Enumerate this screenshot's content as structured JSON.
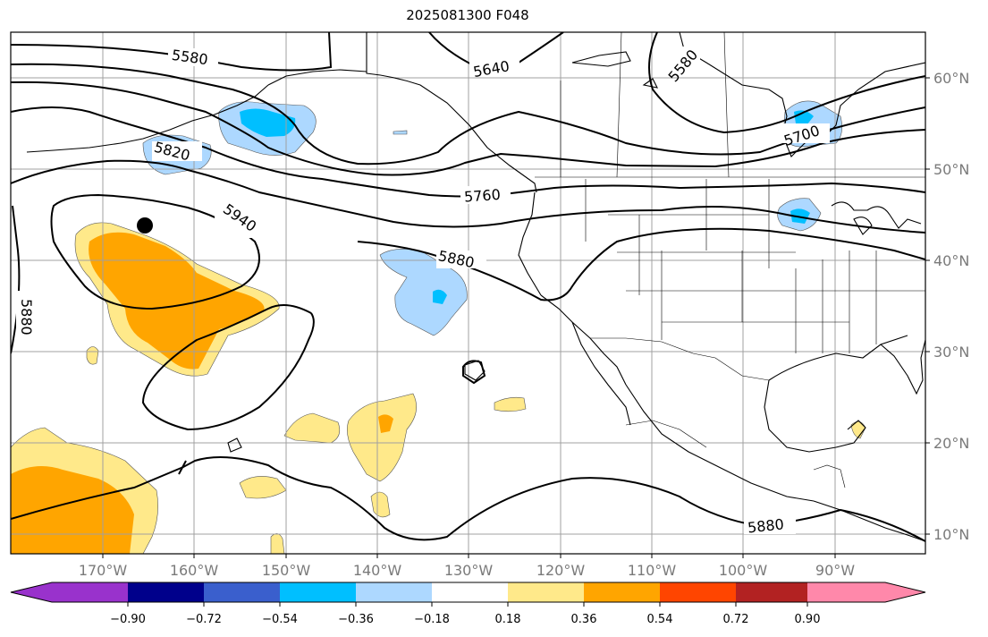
{
  "title": "2025081300 F048",
  "lon_labels": [
    "170°W",
    "160°W",
    "150°W",
    "140°W",
    "130°W",
    "120°W",
    "110°W",
    "100°W",
    "90°W"
  ],
  "lat_labels": [
    "60°N",
    "50°N",
    "40°N",
    "30°N",
    "20°N",
    "10°N"
  ],
  "contour_labels": [
    "5580",
    "5640",
    "5580",
    "5700",
    "5820",
    "5760",
    "5940",
    "5880",
    "5880",
    "5880"
  ],
  "colorbar": {
    "ticks": [
      "−0.90",
      "−0.72",
      "−0.54",
      "−0.36",
      "−0.18",
      "0.18",
      "0.36",
      "0.54",
      "0.72",
      "0.90"
    ],
    "colors": [
      "#9932cc",
      "#00008b",
      "#3a5fcd",
      "#00bfff",
      "#add8ff",
      "#ffffff",
      "#ffe98a",
      "#ffa500",
      "#ff4500",
      "#b22222",
      "#ff88aa"
    ]
  },
  "colors": {
    "grid": "#a0a0a0",
    "coast": "#000000",
    "contour": "#000000",
    "neg_light": "#add8ff",
    "neg_mid": "#00bfff",
    "pos_light": "#ffe98a",
    "pos_mid": "#ffa500",
    "marker": "#000000"
  }
}
